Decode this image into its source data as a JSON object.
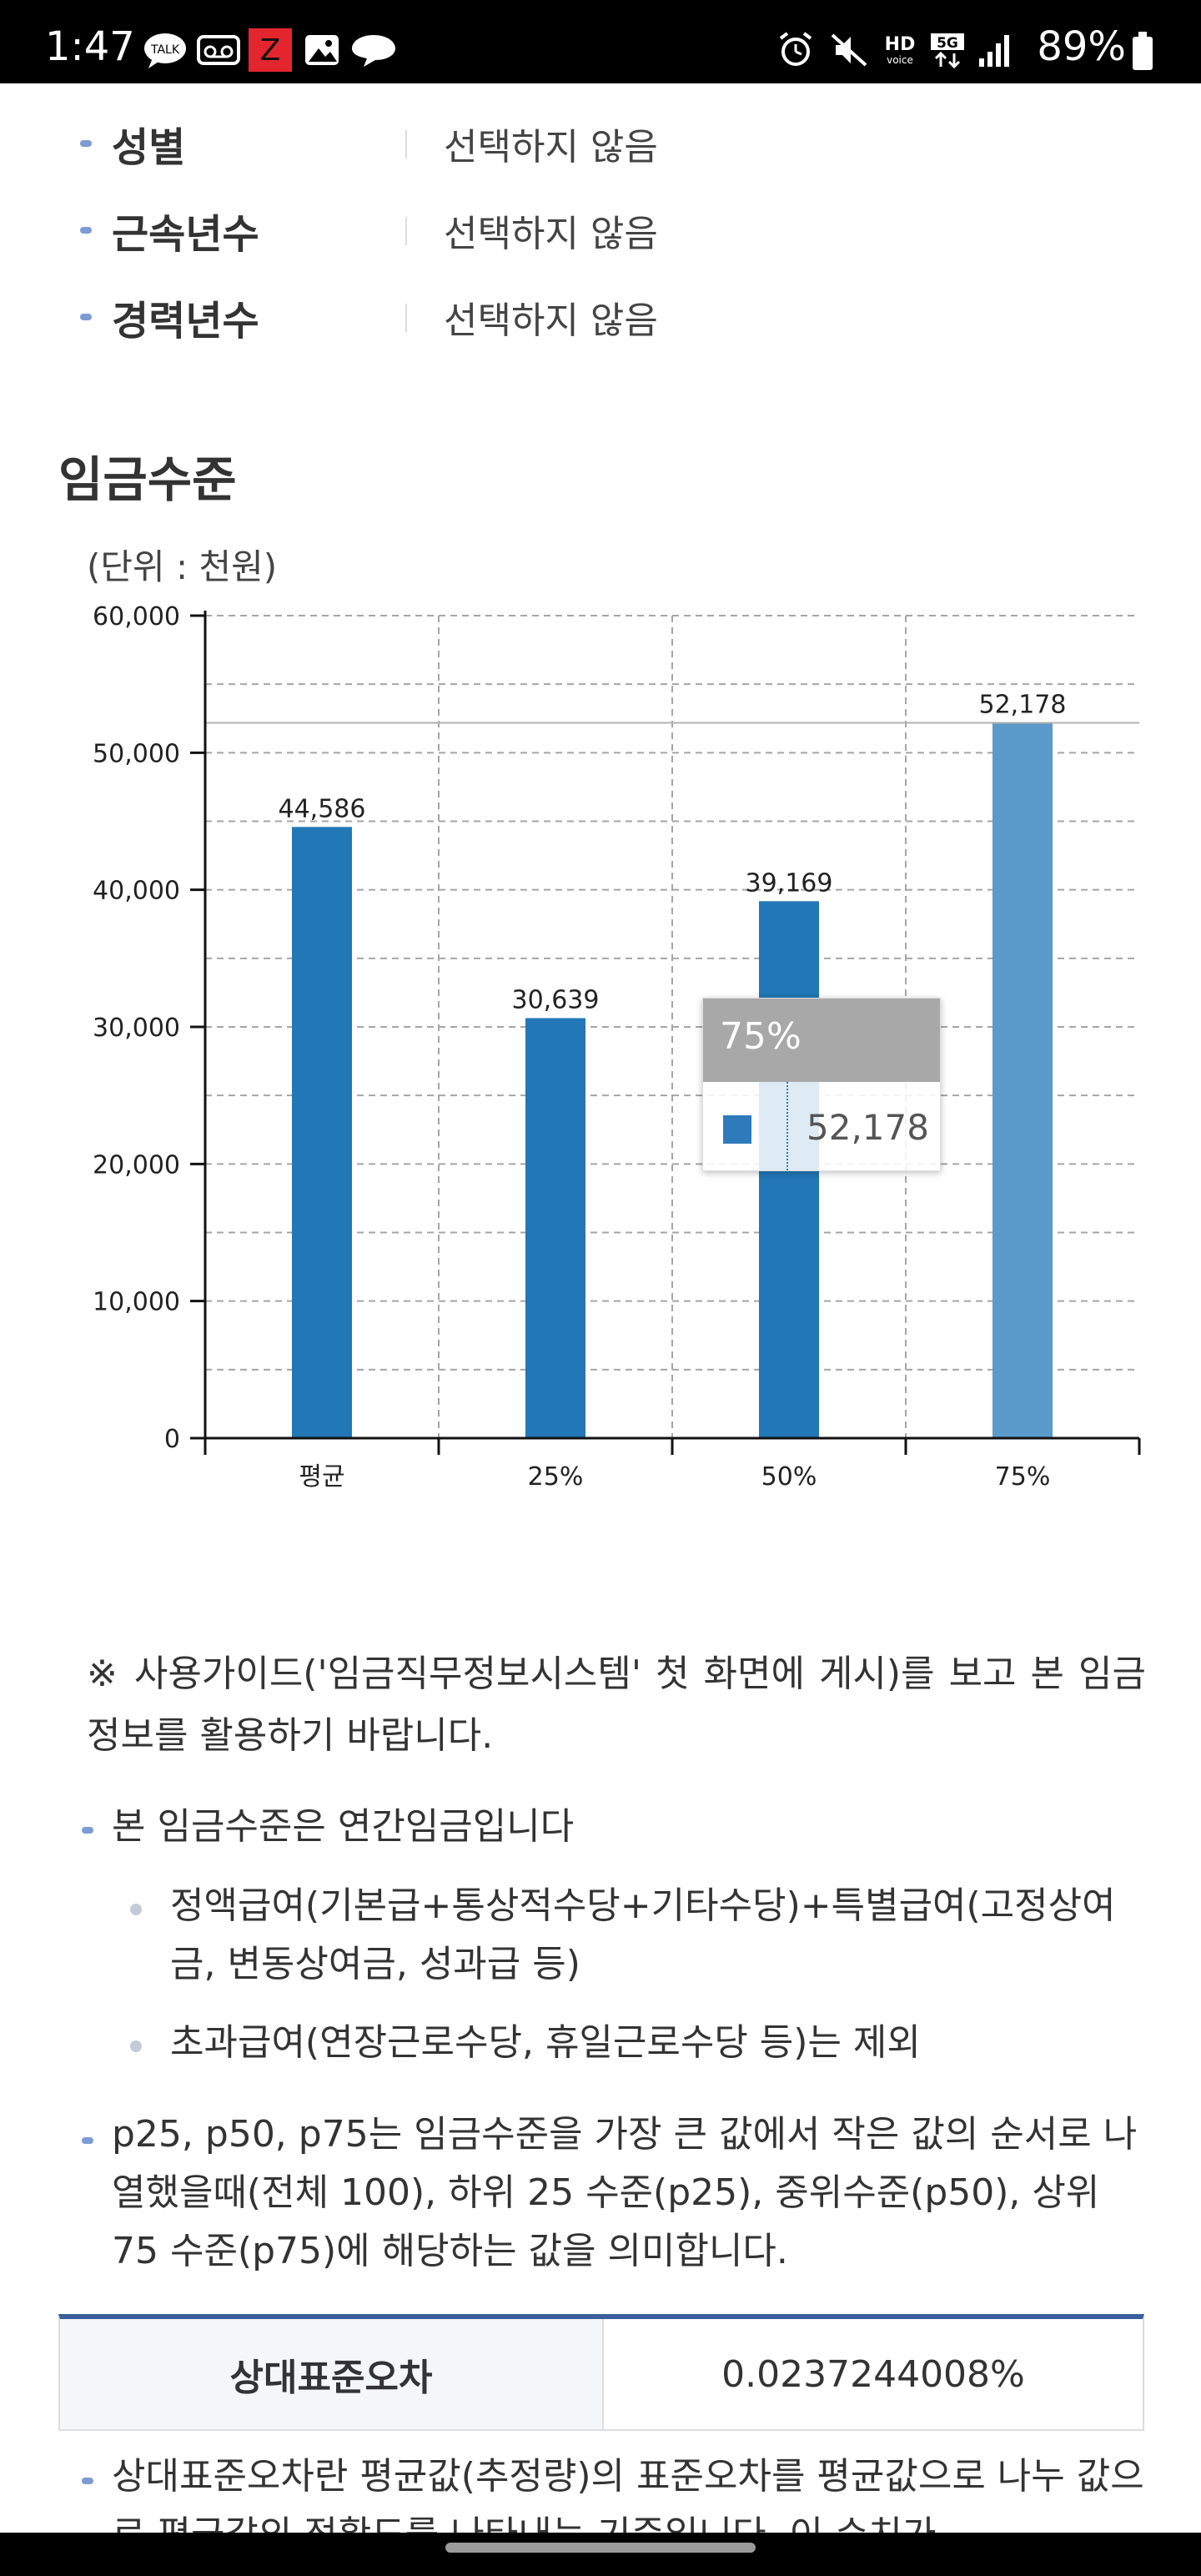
{
  "status_bar": {
    "time": "1:47",
    "notification_icons": [
      "talk-icon",
      "voicemail-icon",
      "z-app-icon",
      "gallery-icon",
      "chat-icon"
    ],
    "system_icons": [
      "alarm-icon",
      "mute-icon",
      "hd-voice-icon",
      "5g-icon",
      "signal-icon"
    ],
    "battery": "89%"
  },
  "filters": [
    {
      "label": "성별",
      "value": "선택하지 않음"
    },
    {
      "label": "근속년수",
      "value": "선택하지 않음"
    },
    {
      "label": "경력년수",
      "value": "선택하지 않음"
    }
  ],
  "section_title": "임금수준",
  "unit_label": "(단위 : 천원)",
  "chart_data": {
    "type": "bar",
    "categories": [
      "평균",
      "25%",
      "50%",
      "75%"
    ],
    "values": [
      44586,
      30639,
      39169,
      52178
    ],
    "data_labels": [
      "44,586",
      "30,639",
      "39,169",
      "52,178"
    ],
    "yticks": [
      "0",
      "10,000",
      "20,000",
      "30,000",
      "40,000",
      "50,000",
      "60,000"
    ],
    "ylim": [
      0,
      60000
    ],
    "grid": true,
    "bar_color": "#2277b6",
    "highlight_color": "#5a9bcb",
    "highlighted_category": "75%",
    "reference_line_value": 52178,
    "tooltip": {
      "title": "75%",
      "value": "52,178"
    }
  },
  "guide": {
    "note": "※ 사용가이드('임금직무정보시스템' 첫 화면에 게시)를 보고 본 임금정보를 활용하기 바랍니다.",
    "annual_wage": "본 임금수준은 연간임금입니다",
    "includes": "정액급여(기본급+통상적수당+기타수당)+특별급여(고정상여금, 변동상여금, 성과급 등)",
    "excludes": "초과급여(연장근로수당, 휴일근로수당 등)는 제외",
    "percentile_note": "p25, p50, p75는 임금수준을 가장 큰 값에서 작은 값의 순서로 나열했을때(전체 100), 하위 25 수준(p25), 중위수준(p50), 상위 75 수준(p75)에 해당하는 값을 의미합니다.",
    "rse_note": "상대표준오차란 평균값(추정량)의 표준오차를 평균값으로 나누 값으로 평균값의 정확도를 나타내는 기준입니다. 이 수치가"
  },
  "rse_table": {
    "label": "상대표준오차",
    "value": "0.0237244008%"
  }
}
